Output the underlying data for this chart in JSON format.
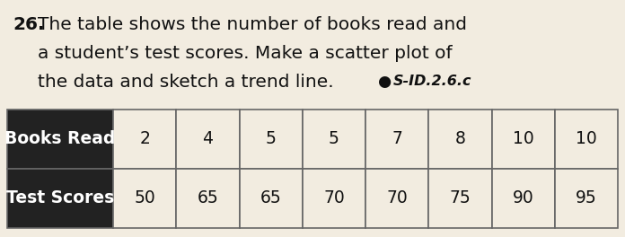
{
  "question_number": "26.",
  "line1": "The table shows the number of books read and",
  "line2": "a student’s test scores. Make a scatter plot of",
  "line3_a": "the data and sketch a trend line.",
  "standard": "S-ID.2.6.c",
  "header_row": [
    "Books Read",
    "2",
    "4",
    "5",
    "5",
    "7",
    "8",
    "10",
    "10"
  ],
  "data_row": [
    "Test Scores",
    "50",
    "65",
    "65",
    "70",
    "70",
    "75",
    "90",
    "95"
  ],
  "background_color": "#f2ece0",
  "header_bg_color": "#222222",
  "header_text_color": "#ffffff",
  "cell_bg_color": "#f2ece0",
  "cell_text_color": "#111111",
  "table_border_color": "#666666",
  "question_fontsize": 14.5,
  "standard_fontsize": 11.5,
  "table_fontsize": 13.5
}
